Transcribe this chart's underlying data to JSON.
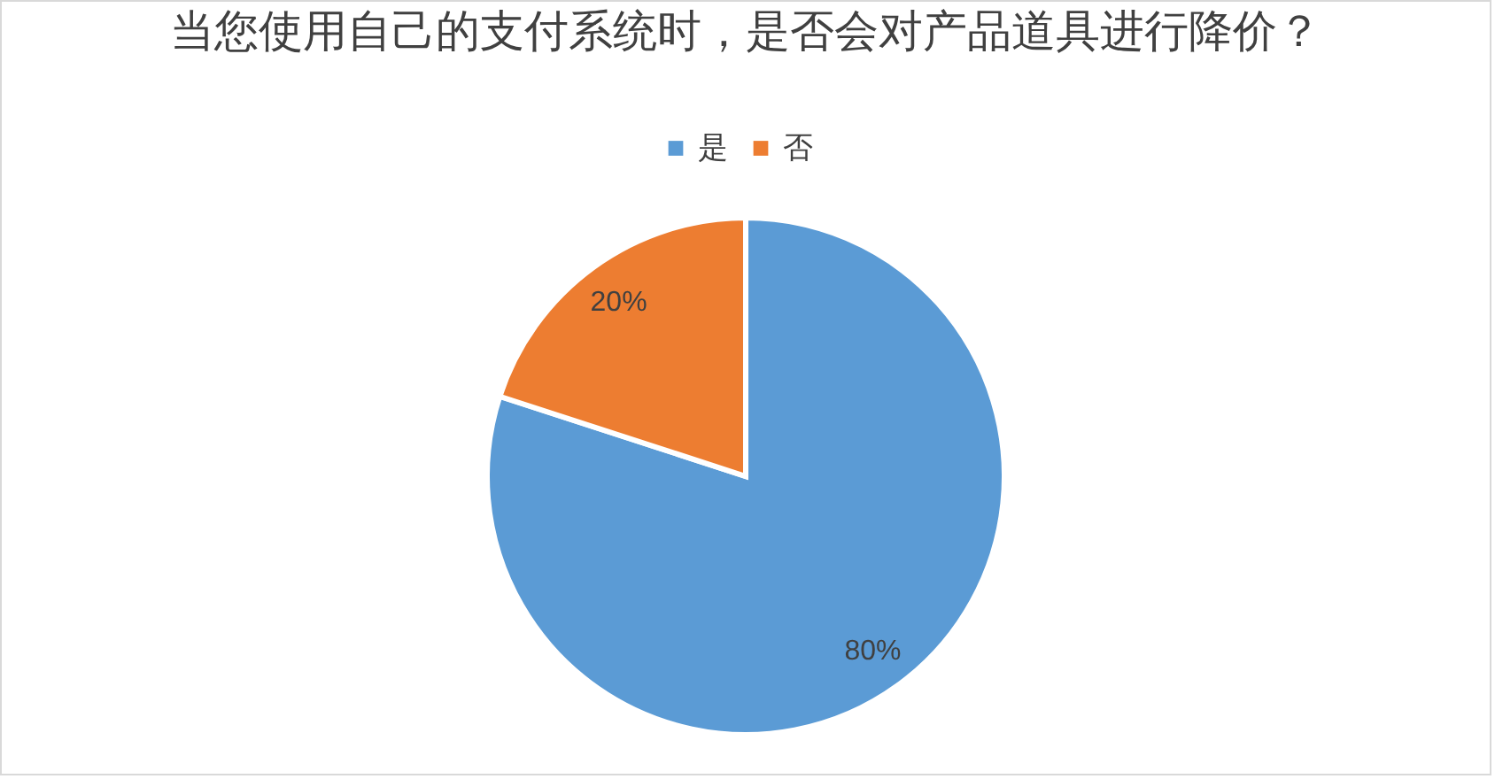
{
  "chart_data": {
    "type": "pie",
    "title": "当您使用自己的支付系统时，是否会对产品道具进行降价？",
    "categories": [
      "是",
      "否"
    ],
    "values": [
      80,
      20
    ],
    "colors": [
      "#5b9bd5",
      "#ed7d31"
    ],
    "value_labels": [
      "80%",
      "20%"
    ],
    "legend": "top"
  }
}
